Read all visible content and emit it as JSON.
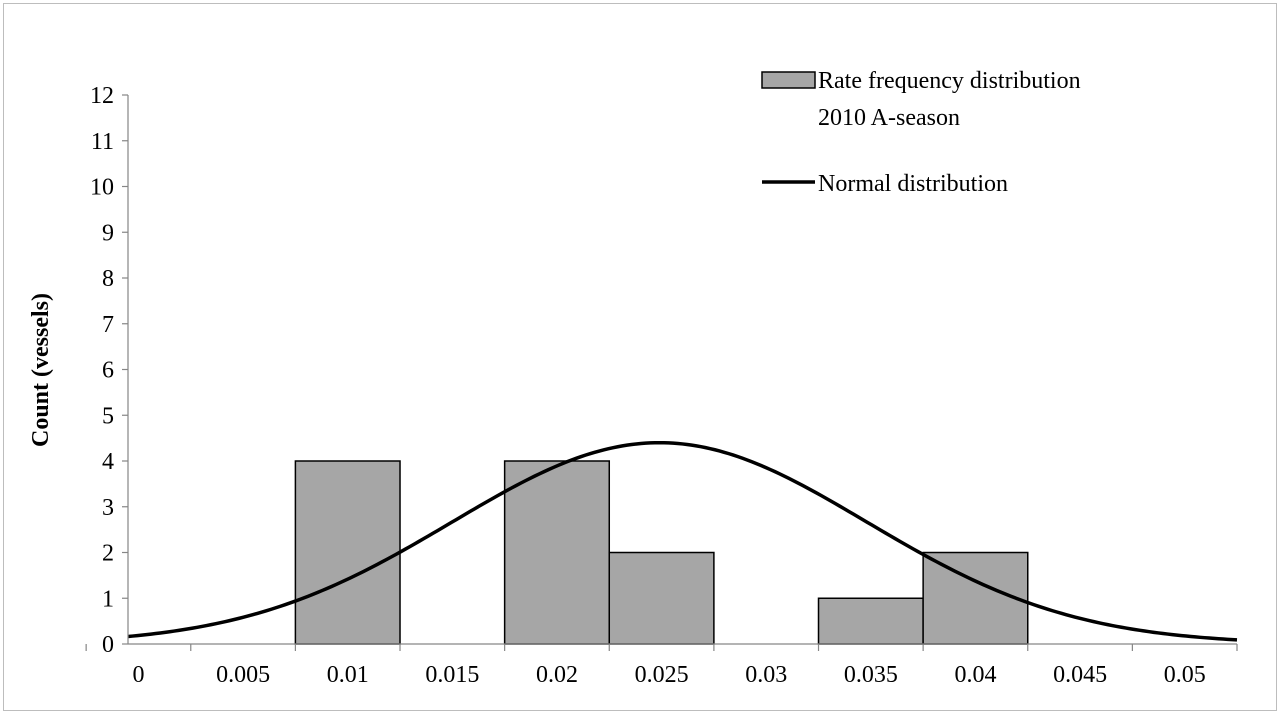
{
  "chart_data": {
    "type": "bar",
    "xlabel": "",
    "ylabel": "Count (vessels)",
    "xlim": [
      -0.0005,
      0.0525
    ],
    "ylim": [
      0,
      12
    ],
    "x_ticks": [
      "0",
      "0.005",
      "0.01",
      "0.015",
      "0.02",
      "0.025",
      "0.03",
      "0.035",
      "0.04",
      "0.045",
      "0.05"
    ],
    "x_tick_values": [
      0,
      0.005,
      0.01,
      0.015,
      0.02,
      0.025,
      0.03,
      0.035,
      0.04,
      0.045,
      0.05
    ],
    "y_ticks": [
      "0",
      "1",
      "2",
      "3",
      "4",
      "5",
      "6",
      "7",
      "8",
      "9",
      "10",
      "11",
      "12"
    ],
    "grid": false,
    "legend_position": "top-right",
    "series": [
      {
        "name": "Rate frequency distribution 2010 A-season",
        "legend_lines": [
          "Rate frequency distribution",
          "2010 A-season"
        ],
        "kind": "bar",
        "color": "#a6a6a6",
        "bins": [
          {
            "from": 0.0075,
            "to": 0.0125,
            "count": 4
          },
          {
            "from": 0.0125,
            "to": 0.0175,
            "count": 0
          },
          {
            "from": 0.0175,
            "to": 0.0225,
            "count": 4
          },
          {
            "from": 0.0225,
            "to": 0.0275,
            "count": 2
          },
          {
            "from": 0.0275,
            "to": 0.0325,
            "count": 0
          },
          {
            "from": 0.0325,
            "to": 0.0375,
            "count": 1
          },
          {
            "from": 0.0375,
            "to": 0.0425,
            "count": 2
          }
        ]
      },
      {
        "name": "Normal distribution",
        "kind": "line",
        "color": "#000000",
        "mean": 0.0249,
        "sd": 0.0099,
        "peak_count": 4.4
      }
    ]
  }
}
